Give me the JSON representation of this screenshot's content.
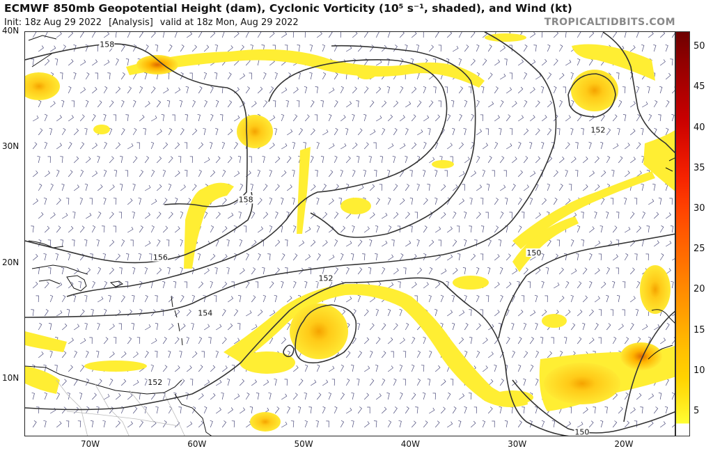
{
  "header": {
    "title": "ECMWF 850mb Geopotential Height (dam), Cyclonic Vorticity (10⁵ s⁻¹, shaded), and Wind (kt)",
    "init": "Init: 18z Aug 29 2022",
    "analysis": "[Analysis]",
    "valid": "valid at 18z Mon, Aug 29 2022",
    "brand": "TROPICALTIDBITS.COM"
  },
  "map": {
    "lat_range": [
      5,
      40
    ],
    "lon_range": [
      -76,
      -15
    ],
    "lat_labels": [
      {
        "lat": 40,
        "text": "40N"
      },
      {
        "lat": 30,
        "text": "30N"
      },
      {
        "lat": 20,
        "text": "20N"
      },
      {
        "lat": 10,
        "text": "10N"
      }
    ],
    "lon_labels": [
      {
        "lon": -70,
        "text": "70W"
      },
      {
        "lon": -60,
        "text": "60W"
      },
      {
        "lon": -50,
        "text": "50W"
      },
      {
        "lon": -40,
        "text": "40W"
      },
      {
        "lon": -30,
        "text": "30W"
      },
      {
        "lon": -20,
        "text": "20W"
      }
    ],
    "contour_labels": [
      {
        "text": "158",
        "lon": -69,
        "lat": 38.7
      },
      {
        "text": "158",
        "lon": -56,
        "lat": 25.3
      },
      {
        "text": "156",
        "lon": -64,
        "lat": 20.3
      },
      {
        "text": "154",
        "lon": -59.8,
        "lat": 15.5
      },
      {
        "text": "152",
        "lon": -48.5,
        "lat": 18.5
      },
      {
        "text": "152",
        "lon": -23,
        "lat": 31.3
      },
      {
        "text": "150",
        "lon": -29,
        "lat": 20.7
      },
      {
        "text": "152",
        "lon": -64.5,
        "lat": 9.5
      },
      {
        "text": "150",
        "lon": -24.5,
        "lat": 5.2
      }
    ]
  },
  "colorbar": {
    "ticks": [
      "5",
      "10",
      "15",
      "20",
      "25",
      "30",
      "35",
      "40",
      "45",
      "50"
    ],
    "min": 2,
    "max": 52,
    "colors": [
      "#ffff33",
      "#ffec1f",
      "#ffd300",
      "#ffbf00",
      "#ffa500",
      "#ff8c00",
      "#ff7200",
      "#ff5a00",
      "#ff3f00",
      "#f52200",
      "#e01000",
      "#c80000",
      "#ad0000",
      "#900000",
      "#6e0000"
    ]
  }
}
